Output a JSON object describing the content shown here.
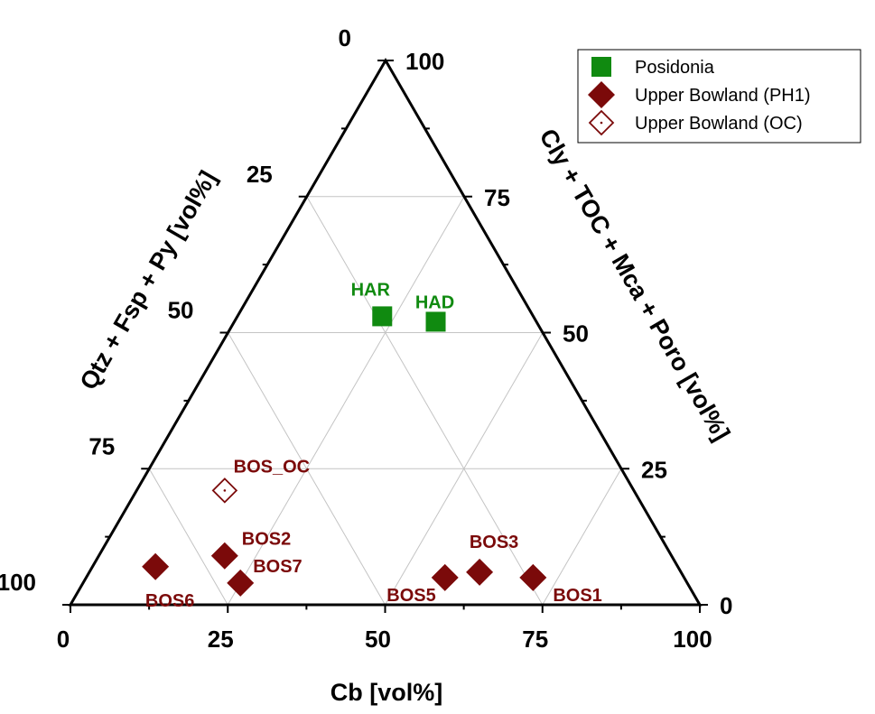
{
  "chart_data": {
    "type": "ternary-scatter",
    "axes": {
      "bottom": {
        "title": "Cb [vol%]",
        "ticks": [
          "0",
          "25",
          "50",
          "75",
          "100"
        ]
      },
      "left": {
        "title": "Qtz + Fsp + Py [vol%]",
        "ticks": [
          "0",
          "25",
          "50",
          "75",
          "100"
        ]
      },
      "right": {
        "title": "Cly + TOC + Mca + Poro [vol%]",
        "ticks": [
          "0",
          "25",
          "50",
          "75",
          "100"
        ]
      }
    },
    "grid": true,
    "legend_position": "top-right",
    "series": [
      {
        "name": "Posidonia",
        "color": "#108a10",
        "marker": "square",
        "points": [
          {
            "label": "HAR",
            "Cb": 23,
            "Qtz_Fsp_Py": 24,
            "Cly_TOC_Mca_Poro": 53
          },
          {
            "label": "HAD",
            "Cb": 32,
            "Qtz_Fsp_Py": 16,
            "Cly_TOC_Mca_Poro": 52
          }
        ]
      },
      {
        "name": "Upper Bowland (PH1)",
        "color": "#7b0a0a",
        "marker": "diamond",
        "points": [
          {
            "label": "BOS6",
            "Cb": 10,
            "Qtz_Fsp_Py": 83,
            "Cly_TOC_Mca_Poro": 7
          },
          {
            "label": "BOS2",
            "Cb": 20,
            "Qtz_Fsp_Py": 71,
            "Cly_TOC_Mca_Poro": 9
          },
          {
            "label": "BOS7",
            "Cb": 25,
            "Qtz_Fsp_Py": 71,
            "Cly_TOC_Mca_Poro": 4
          },
          {
            "label": "BOS5",
            "Cb": 57,
            "Qtz_Fsp_Py": 38,
            "Cly_TOC_Mca_Poro": 5
          },
          {
            "label": "BOS3",
            "Cb": 62,
            "Qtz_Fsp_Py": 32,
            "Cly_TOC_Mca_Poro": 6
          },
          {
            "label": "BOS1",
            "Cb": 71,
            "Qtz_Fsp_Py": 24,
            "Cly_TOC_Mca_Poro": 5
          }
        ]
      },
      {
        "name": "Upper Bowland (OC)",
        "color": "#7b0a0a",
        "marker": "diamond-open",
        "points": [
          {
            "label": "BOS_OC",
            "Cb": 14,
            "Qtz_Fsp_Py": 65,
            "Cly_TOC_Mca_Poro": 21
          }
        ]
      }
    ]
  }
}
